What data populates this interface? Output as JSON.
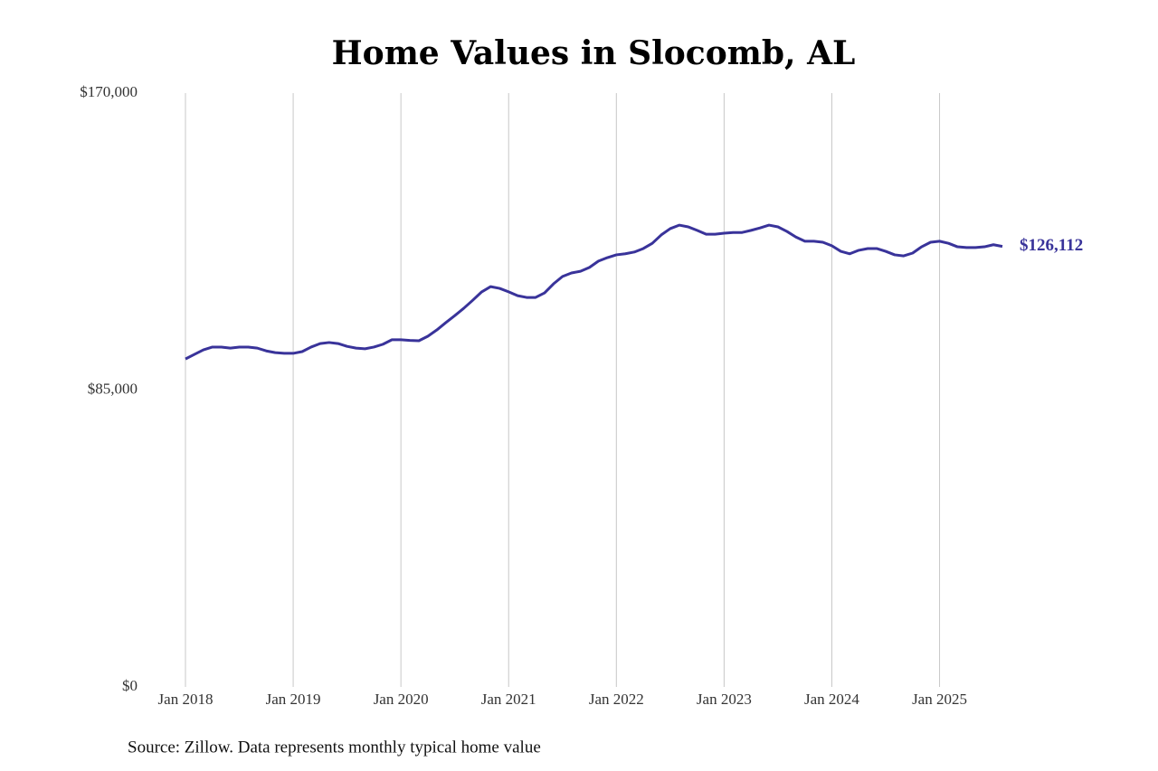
{
  "chart_data": {
    "type": "line",
    "title": "Home Values in Slocomb, AL",
    "source": "Source: Zillow. Data represents monthly typical home value",
    "color": "#39339a",
    "grid": true,
    "x": [
      "2018-01",
      "2018-02",
      "2018-03",
      "2018-04",
      "2018-05",
      "2018-06",
      "2018-07",
      "2018-08",
      "2018-09",
      "2018-10",
      "2018-11",
      "2018-12",
      "2019-01",
      "2019-02",
      "2019-03",
      "2019-04",
      "2019-05",
      "2019-06",
      "2019-07",
      "2019-08",
      "2019-09",
      "2019-10",
      "2019-11",
      "2019-12",
      "2020-01",
      "2020-02",
      "2020-03",
      "2020-04",
      "2020-05",
      "2020-06",
      "2020-07",
      "2020-08",
      "2020-09",
      "2020-10",
      "2020-11",
      "2020-12",
      "2021-01",
      "2021-02",
      "2021-03",
      "2021-04",
      "2021-05",
      "2021-06",
      "2021-07",
      "2021-08",
      "2021-09",
      "2021-10",
      "2021-11",
      "2021-12",
      "2022-01",
      "2022-02",
      "2022-03",
      "2022-04",
      "2022-05",
      "2022-06",
      "2022-07",
      "2022-08",
      "2022-09",
      "2022-10",
      "2022-11",
      "2022-12",
      "2023-01",
      "2023-02",
      "2023-03",
      "2023-04",
      "2023-05",
      "2023-06",
      "2023-07",
      "2023-08",
      "2023-09",
      "2023-10",
      "2023-11",
      "2023-12",
      "2024-01",
      "2024-02",
      "2024-03",
      "2024-04",
      "2024-05",
      "2024-06",
      "2024-07",
      "2024-08",
      "2024-09",
      "2024-10",
      "2024-11",
      "2024-12",
      "2025-01",
      "2025-02",
      "2025-03",
      "2025-04",
      "2025-05",
      "2025-06",
      "2025-07",
      "2025-08"
    ],
    "values": [
      93900,
      95200,
      96500,
      97300,
      97300,
      97000,
      97300,
      97300,
      97000,
      96200,
      95700,
      95500,
      95500,
      96000,
      97300,
      98300,
      98600,
      98300,
      97500,
      97000,
      96800,
      97300,
      98100,
      99400,
      99400,
      99200,
      99100,
      100400,
      102200,
      104300,
      106300,
      108400,
      110700,
      113100,
      114600,
      114100,
      113100,
      112000,
      111500,
      111500,
      112800,
      115400,
      117500,
      118500,
      119000,
      120100,
      121900,
      122900,
      123700,
      124000,
      124500,
      125500,
      127000,
      129400,
      131200,
      132200,
      131700,
      130700,
      129600,
      129600,
      129900,
      130100,
      130100,
      130700,
      131400,
      132200,
      131700,
      130400,
      128800,
      127600,
      127600,
      127300,
      126300,
      124700,
      124000,
      125000,
      125500,
      125500,
      124700,
      123700,
      123400,
      124200,
      126000,
      127300,
      127600,
      127000,
      126000,
      125800,
      125800,
      126000,
      126600,
      126112
    ],
    "value_labels": [
      null,
      null,
      null,
      null,
      null,
      null,
      null,
      null,
      null,
      null,
      null,
      null,
      null,
      null,
      null,
      null,
      null,
      null,
      null,
      null,
      null,
      null,
      null,
      null,
      null,
      null,
      null,
      null,
      null,
      null,
      null,
      null,
      null,
      null,
      null,
      null,
      null,
      null,
      null,
      null,
      null,
      null,
      null,
      null,
      null,
      null,
      null,
      null,
      null,
      null,
      null,
      null,
      null,
      null,
      null,
      null,
      null,
      null,
      null,
      null,
      null,
      null,
      null,
      null,
      null,
      null,
      null,
      null,
      null,
      null,
      null,
      null,
      null,
      null,
      null,
      null,
      null,
      null,
      null,
      null,
      null,
      null,
      null,
      null,
      null,
      null,
      null,
      null,
      null,
      null,
      null,
      "$126,112"
    ],
    "xlim": [
      "2018-01",
      "2025-08"
    ],
    "xticks": [
      {
        "value": "2018-01",
        "label": "Jan 2018"
      },
      {
        "value": "2019-01",
        "label": "Jan 2019"
      },
      {
        "value": "2020-01",
        "label": "Jan 2020"
      },
      {
        "value": "2021-01",
        "label": "Jan 2021"
      },
      {
        "value": "2022-01",
        "label": "Jan 2022"
      },
      {
        "value": "2023-01",
        "label": "Jan 2023"
      },
      {
        "value": "2024-01",
        "label": "Jan 2024"
      },
      {
        "value": "2025-01",
        "label": "Jan 2025"
      }
    ],
    "ylim": [
      0,
      170000
    ],
    "yticks": [
      {
        "value": 0,
        "label": "$0"
      },
      {
        "value": 85000,
        "label": "$85,000"
      },
      {
        "value": 170000,
        "label": "$170,000"
      }
    ]
  }
}
